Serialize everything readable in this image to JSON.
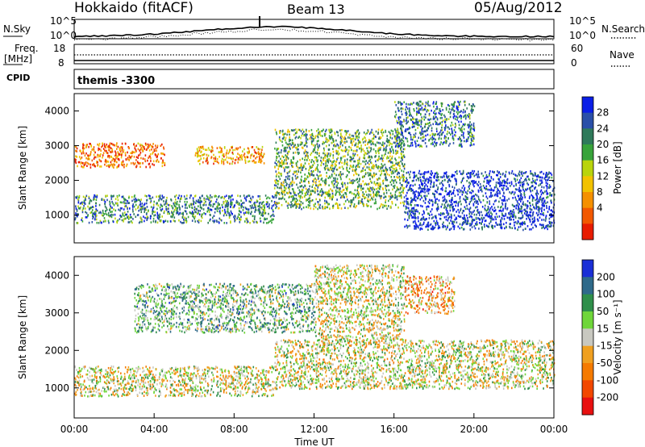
{
  "header": {
    "station": "Hokkaido (fitACF)",
    "beam": "Beam 13",
    "date": "05/Aug/2012"
  },
  "noise_panel": {
    "left_label": "N.Sky",
    "right_label": "N.Search",
    "left_ticks": [
      "10^5",
      "10^0"
    ],
    "right_ticks": [
      "10^5",
      "10^0"
    ]
  },
  "freq_panel": {
    "left_label_1": "Freq.",
    "left_label_2": "[MHz]",
    "right_label": "Nave",
    "left_ticks": [
      "18",
      "8"
    ],
    "right_ticks": [
      "60",
      "0"
    ]
  },
  "cpid_panel": {
    "label": "CPID",
    "value": "themis -3300"
  },
  "chart_data": [
    {
      "type": "heatmap",
      "panel": "power",
      "ylabel": "Slant Range [km]",
      "ylim": [
        200,
        4500
      ],
      "yticks": [
        "1000",
        "2000",
        "3000",
        "4000"
      ],
      "colorbar_label": "Power [dB]",
      "colorbar_ticks": [
        "28",
        "24",
        "20",
        "16",
        "12",
        "8",
        "4"
      ],
      "colors": [
        "#0a1ee6",
        "#2a4fa8",
        "#2f7a5a",
        "#38a33a",
        "#b9d40c",
        "#f2c200",
        "#f59000",
        "#f25800",
        "#e81c00"
      ],
      "bands": [
        {
          "t0": 0.0,
          "t1": 10.0,
          "r0": 800,
          "r1": 1600,
          "level": 0.72
        },
        {
          "t0": 0.0,
          "t1": 4.5,
          "r0": 2400,
          "r1": 3100,
          "level": 0.2
        },
        {
          "t0": 6.0,
          "t1": 9.5,
          "r0": 2500,
          "r1": 3000,
          "level": 0.3
        },
        {
          "t0": 10.0,
          "t1": 16.5,
          "r0": 1200,
          "r1": 3500,
          "level": 0.6
        },
        {
          "t0": 16.5,
          "t1": 24.0,
          "r0": 600,
          "r1": 2300,
          "level": 0.9
        },
        {
          "t0": 16.0,
          "t1": 20.0,
          "r0": 3000,
          "r1": 4300,
          "level": 0.75
        }
      ]
    },
    {
      "type": "heatmap",
      "panel": "velocity",
      "xlabel": "Time UT",
      "xticks": [
        "00:00",
        "04:00",
        "08:00",
        "12:00",
        "16:00",
        "20:00",
        "00:00"
      ],
      "xlim": [
        0,
        24
      ],
      "ylabel": "Slant Range [km]",
      "ylim": [
        200,
        4500
      ],
      "yticks": [
        "1000",
        "2000",
        "3000",
        "4000"
      ],
      "colorbar_label": "Velocity [m s⁻¹]",
      "colorbar_ticks": [
        "200",
        "100",
        "50",
        "15",
        "-15",
        "-50",
        "-100",
        "-200"
      ],
      "colors": [
        "#1a2fd6",
        "#2f6a8a",
        "#2f8f4a",
        "#6fd63a",
        "#c8c8c0",
        "#f0a020",
        "#f57a00",
        "#f24800",
        "#e81010"
      ],
      "bands": [
        {
          "t0": 0.0,
          "t1": 10.0,
          "r0": 800,
          "r1": 1600,
          "level": 0.5
        },
        {
          "t0": 3.0,
          "t1": 12.0,
          "r0": 2500,
          "r1": 3800,
          "level": 0.65
        },
        {
          "t0": 10.0,
          "t1": 24.0,
          "r0": 1000,
          "r1": 2300,
          "level": 0.5
        },
        {
          "t0": 16.5,
          "t1": 19.0,
          "r0": 3000,
          "r1": 4000,
          "level": 0.35
        },
        {
          "t0": 12.0,
          "t1": 16.5,
          "r0": 2300,
          "r1": 4300,
          "level": 0.5
        }
      ]
    }
  ]
}
